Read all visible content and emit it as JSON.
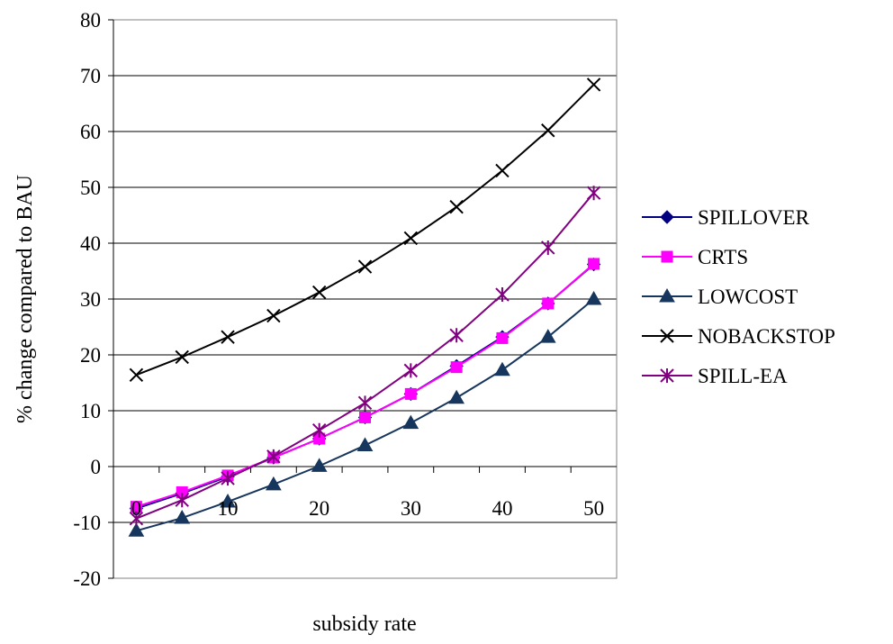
{
  "chart_data": {
    "type": "line",
    "title": "",
    "xlabel": "subsidy rate",
    "ylabel": "% change compared to BAU",
    "x": [
      0,
      5,
      10,
      15,
      20,
      25,
      30,
      35,
      40,
      45,
      50
    ],
    "xlim": [
      -2.5,
      52.5
    ],
    "ylim": [
      -20,
      80
    ],
    "x_ticks": [
      "0",
      "10",
      "20",
      "30",
      "40",
      "50"
    ],
    "y_ticks": [
      "80",
      "70",
      "60",
      "50",
      "40",
      "30",
      "20",
      "10",
      "0",
      "-10",
      "-20"
    ],
    "grid": "horizontal",
    "legend_position": "right",
    "series": [
      {
        "name": "SPILLOVER",
        "color": "#000080",
        "marker": "diamond",
        "values": [
          -7.5,
          -4.8,
          -1.8,
          1.6,
          5.0,
          8.8,
          13.0,
          18.0,
          23.2,
          29.2,
          36.2
        ]
      },
      {
        "name": "CRTS",
        "color": "#FF00FF",
        "marker": "square",
        "values": [
          -7.2,
          -4.6,
          -1.6,
          1.6,
          5.0,
          8.8,
          13.0,
          17.8,
          23.0,
          29.2,
          36.3
        ]
      },
      {
        "name": "LOWCOST",
        "color": "#17365D",
        "marker": "triangle",
        "values": [
          -11.5,
          -9.2,
          -6.3,
          -3.2,
          0.1,
          3.8,
          7.8,
          12.3,
          17.3,
          23.2,
          30.0
        ]
      },
      {
        "name": "NOBACKSTOP",
        "color": "#000000",
        "marker": "x",
        "values": [
          16.4,
          19.6,
          23.2,
          27.0,
          31.2,
          35.8,
          40.9,
          46.5,
          53.0,
          60.2,
          68.4
        ]
      },
      {
        "name": "SPILL-EA",
        "color": "#800080",
        "marker": "star",
        "values": [
          -9.3,
          -6.0,
          -2.1,
          1.8,
          6.5,
          11.4,
          17.2,
          23.5,
          30.8,
          39.2,
          49.0
        ]
      }
    ]
  }
}
